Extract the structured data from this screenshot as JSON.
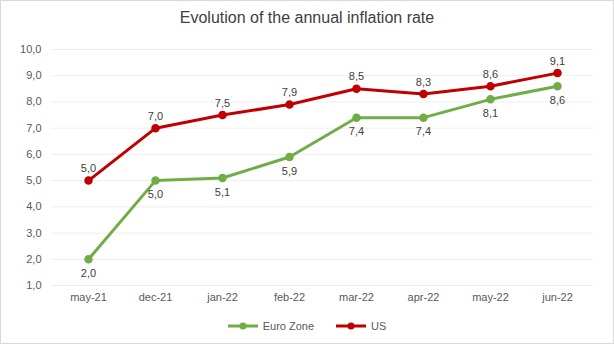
{
  "chart_data": {
    "type": "line",
    "title": "Evolution of the annual inflation rate",
    "categories": [
      "may-21",
      "dec-21",
      "jan-22",
      "feb-22",
      "mar-22",
      "apr-22",
      "may-22",
      "jun-22"
    ],
    "series": [
      {
        "name": "Euro Zone",
        "color": "#70ad47",
        "marker": "circle",
        "values": [
          2.0,
          5.0,
          5.1,
          5.9,
          7.4,
          7.4,
          8.1,
          8.6
        ],
        "value_labels": [
          "2,0",
          "5,0",
          "5,1",
          "5,9",
          "7,4",
          "7,4",
          "8,1",
          "8,6"
        ]
      },
      {
        "name": "US",
        "color": "#c00000",
        "marker": "circle",
        "values": [
          5.0,
          7.0,
          7.5,
          7.9,
          8.5,
          8.3,
          8.6,
          9.1
        ],
        "value_labels": [
          "5,0",
          "7,0",
          "7,5",
          "7,9",
          "8,5",
          "8,3",
          "8,6",
          "9,1"
        ]
      }
    ],
    "ylim": [
      1,
      10
    ],
    "yticks": [
      {
        "value": 1,
        "label": "1,0"
      },
      {
        "value": 2,
        "label": "2,0"
      },
      {
        "value": 3,
        "label": "3,0"
      },
      {
        "value": 4,
        "label": "4,0"
      },
      {
        "value": 5,
        "label": "5,0"
      },
      {
        "value": 6,
        "label": "6,0"
      },
      {
        "value": 7,
        "label": "7,0"
      },
      {
        "value": 8,
        "label": "8,0"
      },
      {
        "value": 9,
        "label": "9,0"
      },
      {
        "value": 10,
        "label": "10,0"
      }
    ],
    "grid": true,
    "data_labels": true,
    "legend": "bottom"
  }
}
